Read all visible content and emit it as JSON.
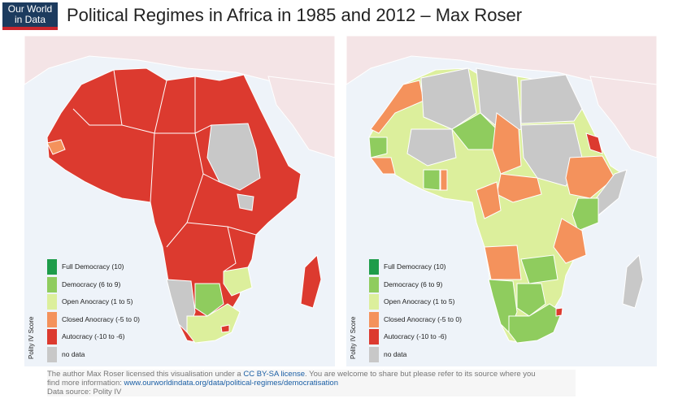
{
  "header": {
    "logo_line1": "Our World",
    "logo_line2": "in Data",
    "title": "Political Regimes in Africa in 1985 and 2012 – Max Roser"
  },
  "legend": {
    "axis_title": "Polity IV Score",
    "items": [
      {
        "label": "Full Democracy (10)",
        "color": "#1e9c4a"
      },
      {
        "label": "Democracy (6 to 9)",
        "color": "#8fcc5e"
      },
      {
        "label": "Open Anocracy (1 to 5)",
        "color": "#dcef9c"
      },
      {
        "label": "Closed Anocracy (-5 to 0)",
        "color": "#f4925c"
      },
      {
        "label": "Autocracy (-10 to -6)",
        "color": "#dc3a2f"
      },
      {
        "label": "no data",
        "color": "#c8c8c8"
      }
    ]
  },
  "colors": {
    "ocean": "#eef3f9",
    "land_other": "#f4e4e6",
    "border": "#ffffff"
  },
  "maps": [
    {
      "year": 1985
    },
    {
      "year": 2012
    }
  ],
  "footer": {
    "line1_pre": "The author Max Roser licensed this visualisation under a ",
    "license": "CC BY-SA license",
    "line1_post": ". You are welcome to share but please refer to its source where you",
    "line2_pre": "find more information: ",
    "url": "www.ourworldindata.org/data/political-regimes/democratisation",
    "line3": "Data source: Polity IV"
  }
}
